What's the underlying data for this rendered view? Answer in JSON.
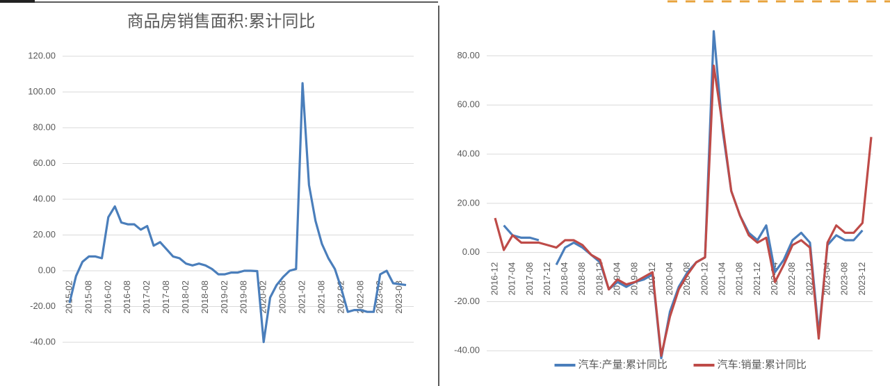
{
  "chart_data": [
    {
      "type": "line",
      "title": "商品房销售面积:累计同比",
      "categories": [
        "2015-02",
        null,
        null,
        "2015-08",
        null,
        null,
        "2016-02",
        null,
        null,
        "2016-08",
        null,
        null,
        "2017-02",
        null,
        null,
        "2017-08",
        null,
        null,
        "2018-02",
        null,
        null,
        "2018-08",
        null,
        null,
        "2019-02",
        null,
        null,
        "2019-08",
        null,
        null,
        "2020-02",
        null,
        null,
        "2020-08",
        null,
        null,
        "2021-02",
        null,
        null,
        "2021-08",
        null,
        null,
        "2022-02",
        null,
        null,
        "2022-08",
        null,
        null,
        "2023-02",
        null,
        null,
        "2023-08",
        null
      ],
      "values": [
        -18,
        -3,
        5,
        8,
        8,
        7,
        30,
        36,
        27,
        26,
        26,
        23,
        25,
        14,
        16,
        12,
        8,
        7,
        4,
        3,
        4,
        3,
        1,
        -2,
        -2,
        -1,
        -1,
        0,
        0,
        -0.2,
        -39.9,
        -15,
        -8,
        -3.5,
        0,
        1,
        104.9,
        48,
        28,
        15,
        7,
        1,
        -10,
        -23,
        -22,
        -22,
        -23,
        -23,
        -2,
        0,
        -7,
        -7.5,
        -8
      ],
      "color": "#4a7ebb",
      "ylim": [
        -40,
        120
      ],
      "yticks": [
        {
          "value": -40,
          "label": "-40.00"
        },
        {
          "value": -20,
          "label": "-20.00"
        },
        {
          "value": 0,
          "label": "0.00"
        },
        {
          "value": 20,
          "label": "20.00"
        },
        {
          "value": 40,
          "label": "40.00"
        },
        {
          "value": 60,
          "label": "60.00"
        },
        {
          "value": 80,
          "label": "80.00"
        },
        {
          "value": 100,
          "label": "100.00"
        },
        {
          "value": 120,
          "label": "120.00"
        }
      ],
      "grid": true
    },
    {
      "type": "line",
      "categories": [
        "2016-12",
        null,
        "2017-04",
        null,
        "2017-08",
        null,
        "2017-12",
        null,
        "2018-04",
        null,
        "2018-08",
        null,
        "2018-12",
        null,
        "2019-04",
        null,
        "2019-08",
        null,
        "2019-12",
        null,
        "2020-04",
        null,
        "2020-08",
        null,
        "2020-12",
        null,
        "2021-04",
        null,
        "2021-08",
        null,
        "2021-12",
        null,
        "2022-04",
        null,
        "2022-08",
        null,
        "2022-12",
        null,
        "2023-04",
        null,
        "2023-08",
        null,
        "2023-12",
        null
      ],
      "series": [
        {
          "name": "汽车:产量:累计同比",
          "color": "#4a7ebb",
          "values": [
            null,
            11,
            7,
            6,
            6,
            5,
            null,
            -5,
            2,
            4,
            2,
            -1,
            -4,
            -15,
            -12,
            -14,
            -12,
            -11,
            -9,
            -43,
            -24,
            -14,
            -8,
            -4,
            -2,
            90,
            50,
            25,
            15,
            8,
            5,
            11,
            -8,
            -3,
            5,
            8,
            4,
            -33,
            3,
            7,
            5,
            5,
            9,
            null
          ]
        },
        {
          "name": "汽车:销量:累计同比",
          "color": "#be4b48",
          "values": [
            14,
            1,
            7,
            4,
            4,
            4,
            3,
            2,
            5,
            5,
            3,
            -1,
            -3,
            -15,
            -11,
            -13,
            -12,
            -10,
            -8,
            -42,
            -26,
            -15,
            -9,
            -4,
            -2,
            76,
            52,
            25,
            15,
            7,
            4,
            6,
            -12,
            -5,
            3,
            5,
            2,
            -35,
            4,
            11,
            8,
            8,
            12,
            47
          ]
        }
      ],
      "ylim": [
        -45,
        90
      ],
      "yticks": [
        {
          "value": -40,
          "label": "-40.00"
        },
        {
          "value": -20,
          "label": "-20.00"
        },
        {
          "value": 0,
          "label": "0.00"
        },
        {
          "value": 20,
          "label": "20.00"
        },
        {
          "value": 40,
          "label": "40.00"
        },
        {
          "value": 60,
          "label": "60.00"
        },
        {
          "value": 80,
          "label": "80.00"
        }
      ],
      "grid": true,
      "legend": "bottom"
    }
  ]
}
